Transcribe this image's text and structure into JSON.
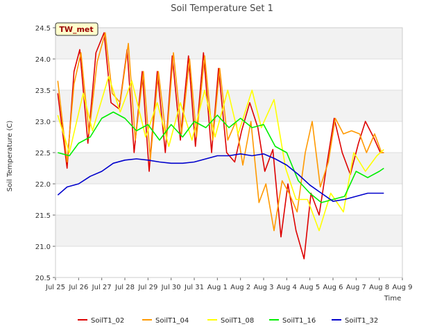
{
  "chart_data": {
    "type": "line",
    "title": "Soil Temperature Set 1",
    "xlabel": "Time",
    "ylabel": "Soil Temperature (C)",
    "site_label": "TW_met",
    "x_ticks": [
      {
        "label": "Jul 25",
        "day": 0
      },
      {
        "label": "Jul 26",
        "day": 1
      },
      {
        "label": "Jul 27",
        "day": 2
      },
      {
        "label": "Jul 28",
        "day": 3
      },
      {
        "label": "Jul 29",
        "day": 4
      },
      {
        "label": "Jul 30",
        "day": 5
      },
      {
        "label": "Jul 31",
        "day": 6
      },
      {
        "label": "Aug 1",
        "day": 7
      },
      {
        "label": "Aug 2",
        "day": 8
      },
      {
        "label": "Aug 3",
        "day": 9
      },
      {
        "label": "Aug 4",
        "day": 10
      },
      {
        "label": "Aug 5",
        "day": 11
      },
      {
        "label": "Aug 6",
        "day": 12
      },
      {
        "label": "Aug 7",
        "day": 13
      },
      {
        "label": "Aug 8",
        "day": 14
      },
      {
        "label": "Aug 9",
        "day": 15
      }
    ],
    "x_range_days": [
      0,
      15
    ],
    "y_ticks": [
      "20.5",
      "21.0",
      "21.5",
      "22.0",
      "22.5",
      "23.0",
      "23.5",
      "24.0",
      "24.5"
    ],
    "ylim": [
      20.5,
      24.5
    ],
    "legend_position": "bottom",
    "series": [
      {
        "name": "SoilT1_02",
        "color": "#dd0000",
        "x": [
          0.1,
          0.5,
          0.8,
          1.05,
          1.4,
          1.75,
          2.1,
          2.4,
          2.75,
          3.1,
          3.4,
          3.75,
          4.05,
          4.4,
          4.75,
          5.05,
          5.4,
          5.75,
          6.05,
          6.4,
          6.75,
          7.05,
          7.4,
          7.75,
          8.05,
          8.4,
          8.75,
          9.05,
          9.4,
          9.75,
          10.05,
          10.4,
          10.75,
          11.05,
          11.4,
          11.75,
          12.05,
          12.4,
          12.75,
          13.1,
          13.4,
          13.75,
          14.05,
          14.2
        ],
        "y": [
          23.45,
          22.25,
          23.8,
          24.15,
          22.65,
          24.1,
          24.42,
          23.3,
          23.2,
          24.15,
          22.5,
          23.8,
          22.2,
          23.8,
          22.5,
          24.05,
          22.7,
          24.05,
          22.6,
          24.1,
          22.5,
          23.85,
          22.5,
          22.35,
          22.85,
          23.3,
          22.9,
          22.2,
          22.55,
          21.15,
          22.0,
          21.25,
          20.8,
          21.85,
          21.5,
          22.35,
          23.05,
          22.5,
          22.15,
          22.65,
          23.0,
          22.75,
          22.5,
          22.5
        ]
      },
      {
        "name": "SoilT1_04",
        "color": "#ff9900",
        "x": [
          0.1,
          0.5,
          0.8,
          1.1,
          1.45,
          1.8,
          2.15,
          2.45,
          2.8,
          3.15,
          3.45,
          3.8,
          4.1,
          4.45,
          4.8,
          5.1,
          5.45,
          5.8,
          6.1,
          6.45,
          6.8,
          7.1,
          7.45,
          7.8,
          8.1,
          8.45,
          8.8,
          9.1,
          9.45,
          9.8,
          10.1,
          10.45,
          10.8,
          11.1,
          11.45,
          11.8,
          12.1,
          12.45,
          12.8,
          13.15,
          13.45,
          13.8,
          14.1,
          14.2
        ],
        "y": [
          23.65,
          22.35,
          23.6,
          24.1,
          22.8,
          23.95,
          24.42,
          23.45,
          23.3,
          24.25,
          22.7,
          23.8,
          22.4,
          23.8,
          22.7,
          24.1,
          22.8,
          24.0,
          22.75,
          24.05,
          22.7,
          23.85,
          22.7,
          23.0,
          22.3,
          23.0,
          21.7,
          22.0,
          21.25,
          22.05,
          21.85,
          21.55,
          22.5,
          23.0,
          21.95,
          22.35,
          23.05,
          22.8,
          22.85,
          22.8,
          22.5,
          22.8,
          22.5,
          22.5
        ],
        "_note_unused": null
      },
      {
        "name": "SoilT1_08",
        "color": "#ffff00",
        "x": [
          0.1,
          0.6,
          1.2,
          1.6,
          2.3,
          2.8,
          3.3,
          3.9,
          4.4,
          4.9,
          5.4,
          5.9,
          6.45,
          6.9,
          7.45,
          7.9,
          8.5,
          8.9,
          9.45,
          9.95,
          10.4,
          10.9,
          11.4,
          11.9,
          12.45,
          12.9,
          13.4,
          13.9,
          14.2
        ],
        "y": [
          23.1,
          22.5,
          23.45,
          22.85,
          23.72,
          23.15,
          23.65,
          22.75,
          23.3,
          22.6,
          23.3,
          22.7,
          23.5,
          22.75,
          23.5,
          22.8,
          23.5,
          22.9,
          23.35,
          22.25,
          21.75,
          21.75,
          21.25,
          21.85,
          21.55,
          22.5,
          22.2,
          22.45,
          22.55
        ]
      },
      {
        "name": "SoilT1_16",
        "color": "#00ee00",
        "x": [
          0.1,
          0.6,
          1.0,
          1.5,
          2.0,
          2.5,
          3.0,
          3.5,
          4.0,
          4.5,
          5.0,
          5.5,
          6.0,
          6.5,
          7.0,
          7.5,
          8.0,
          8.5,
          9.0,
          9.5,
          10.0,
          10.5,
          11.0,
          11.5,
          12.0,
          12.5,
          13.0,
          13.5,
          14.0,
          14.2
        ],
        "y": [
          22.5,
          22.45,
          22.65,
          22.75,
          23.05,
          23.15,
          23.05,
          22.85,
          22.95,
          22.7,
          22.95,
          22.75,
          23.0,
          22.9,
          23.1,
          22.9,
          23.05,
          22.9,
          22.95,
          22.6,
          22.5,
          22.05,
          21.85,
          21.7,
          21.75,
          21.8,
          22.2,
          22.1,
          22.2,
          22.25
        ]
      },
      {
        "name": "SoilT1_32",
        "color": "#0000cc",
        "x": [
          0.1,
          0.5,
          1.0,
          1.5,
          2.0,
          2.5,
          3.0,
          3.5,
          4.0,
          4.5,
          5.0,
          5.5,
          6.0,
          6.5,
          7.0,
          7.5,
          8.0,
          8.5,
          9.0,
          9.5,
          10.0,
          10.5,
          11.0,
          11.5,
          12.0,
          12.5,
          13.0,
          13.5,
          14.0,
          14.2
        ],
        "y": [
          21.82,
          21.95,
          22.0,
          22.12,
          22.2,
          22.33,
          22.38,
          22.4,
          22.38,
          22.35,
          22.33,
          22.33,
          22.35,
          22.4,
          22.45,
          22.45,
          22.48,
          22.45,
          22.48,
          22.4,
          22.3,
          22.15,
          21.98,
          21.85,
          21.72,
          21.75,
          21.8,
          21.85,
          21.85,
          21.85
        ]
      }
    ]
  }
}
